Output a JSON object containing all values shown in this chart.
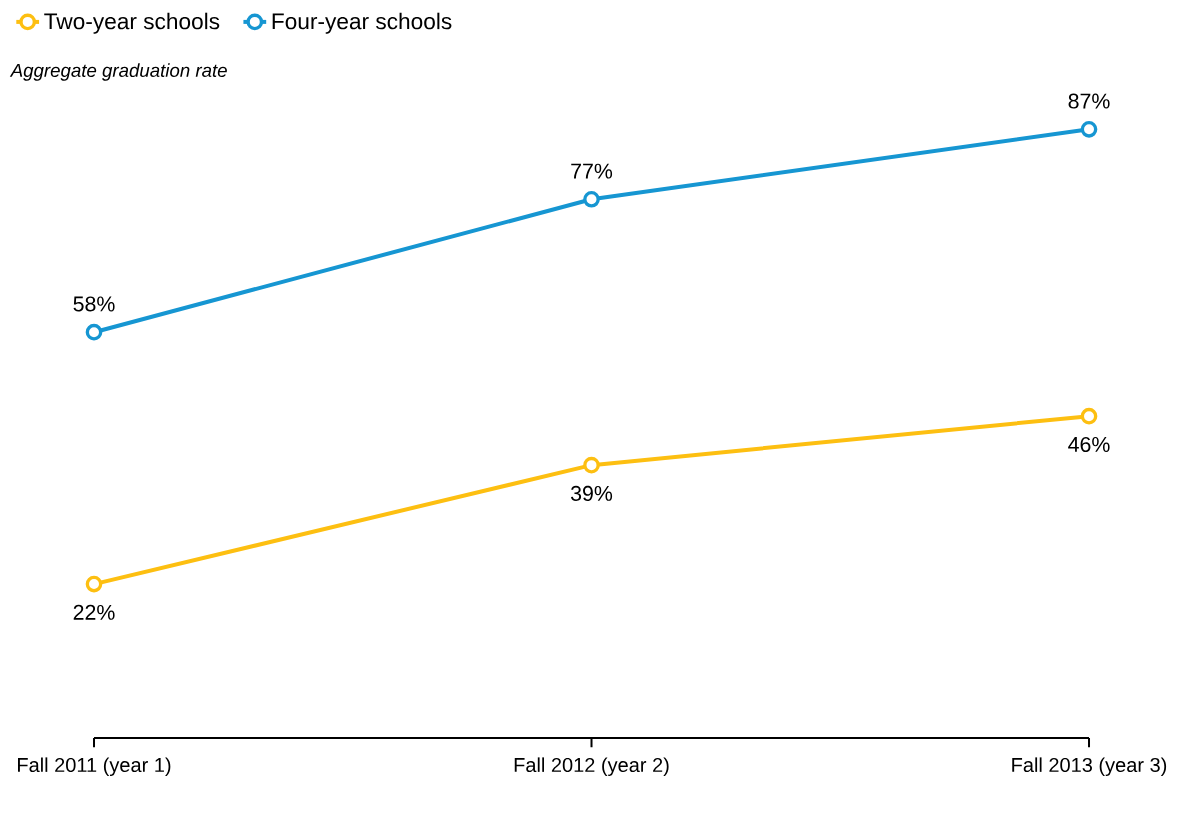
{
  "chart_data": {
    "type": "line",
    "ylabel": "Aggregate graduation rate",
    "categories": [
      "Fall 2011 (year 1)",
      "Fall 2012 (year 2)",
      "Fall 2013 (year 3)"
    ],
    "series": [
      {
        "name": "Two-year schools",
        "color": "#fdbf11",
        "values": [
          22,
          39,
          46
        ],
        "value_labels": [
          "22%",
          "39%",
          "46%"
        ]
      },
      {
        "name": "Four-year schools",
        "color": "#1696d2",
        "values": [
          58,
          77,
          87
        ],
        "value_labels": [
          "58%",
          "77%",
          "87%"
        ]
      }
    ],
    "tick_labels": "x",
    "grid": false,
    "legend": "top left",
    "marker": "circle",
    "line_style": "solid"
  }
}
